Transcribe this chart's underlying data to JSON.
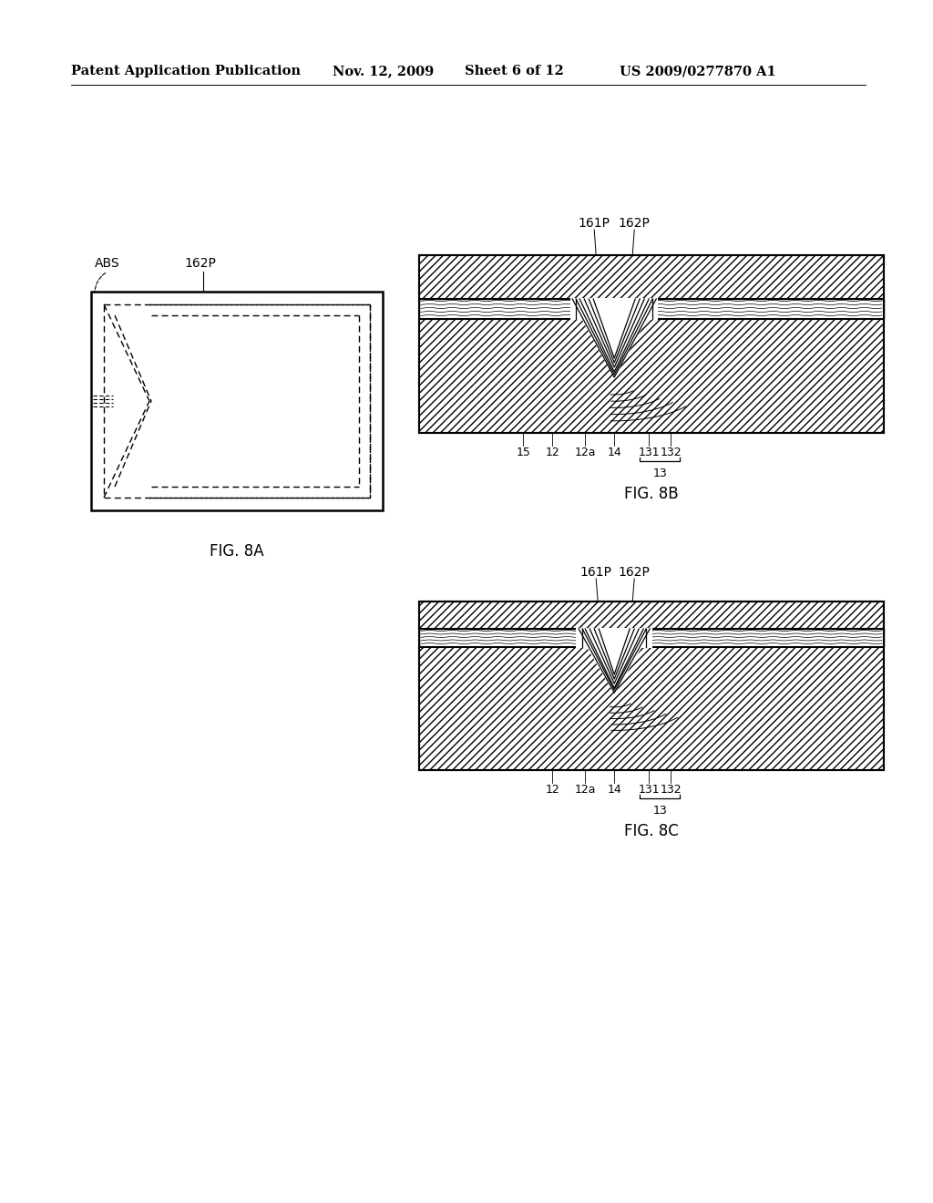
{
  "background_color": "#ffffff",
  "header_text": "Patent Application Publication",
  "header_date": "Nov. 12, 2009",
  "header_sheet": "Sheet 6 of 12",
  "header_patent": "US 2009/0277870 A1",
  "fig_8a_label": "FIG. 8A",
  "fig_8b_label": "FIG. 8B",
  "fig_8c_label": "FIG. 8C",
  "label_ABS": "ABS",
  "label_162P_8a": "162P",
  "label_161P_8b": "161P",
  "label_162P_8b": "162P",
  "label_15_8b": "15",
  "label_12_8b": "12",
  "label_12a_8b": "12a",
  "label_14_8b": "14",
  "label_131_8b": "131",
  "label_132_8b": "132",
  "label_13_8b": "13",
  "label_161P_8c": "161P",
  "label_162P_8c": "162P",
  "label_12_8c": "12",
  "label_12a_8c": "12a",
  "label_14_8c": "14",
  "label_131_8c": "131",
  "label_132_8c": "132",
  "label_13_8c": "13",
  "line_color": "#000000",
  "font_size_header": 10.5,
  "font_size_label": 10,
  "font_size_fig": 12
}
